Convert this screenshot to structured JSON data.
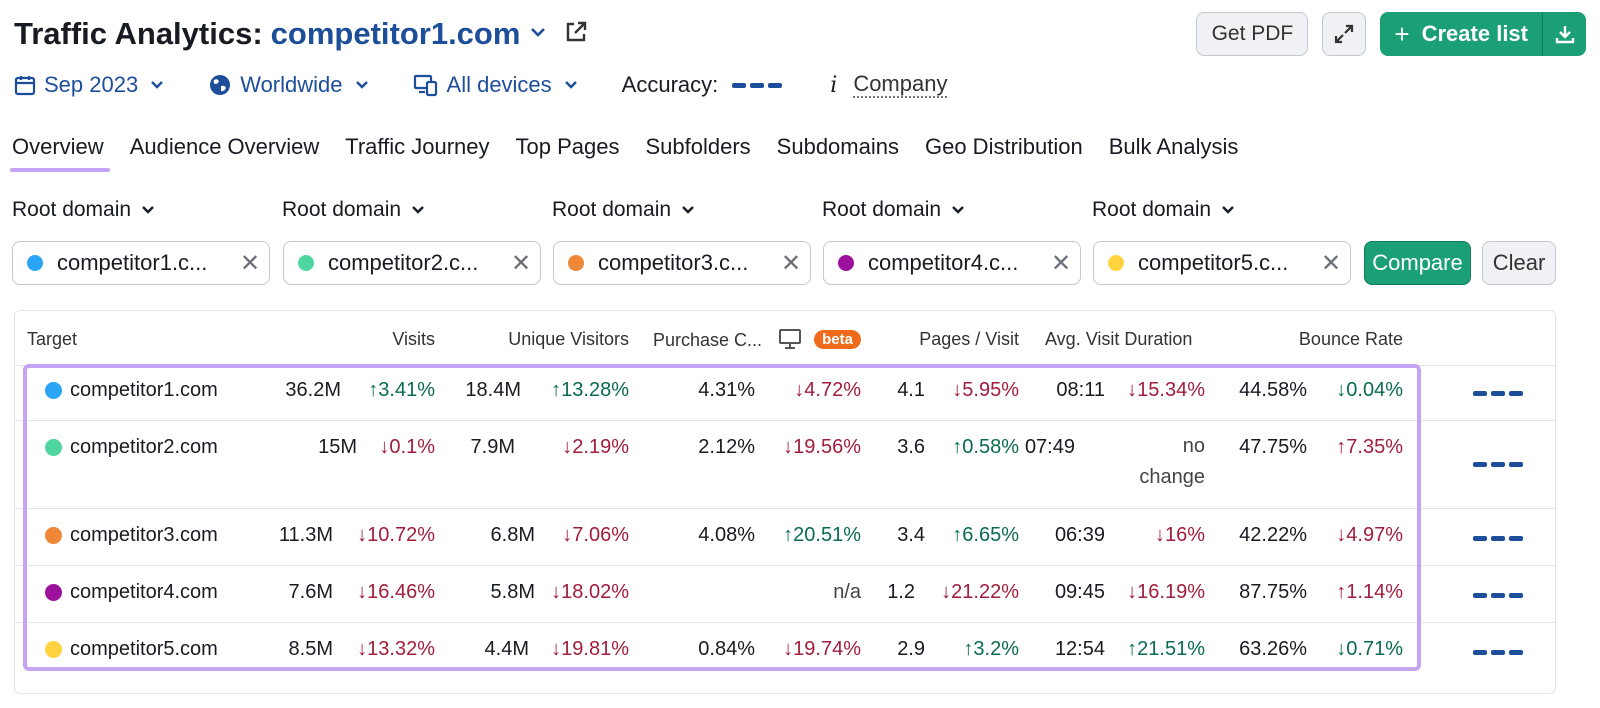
{
  "header": {
    "title": "Traffic Analytics:",
    "domain": "competitor1.com",
    "get_pdf": "Get PDF",
    "create_list": "Create list"
  },
  "filters": {
    "date": "Sep 2023",
    "region": "Worldwide",
    "devices": "All devices",
    "accuracy_label": "Accuracy:",
    "info_glyph": "i",
    "company": "Company"
  },
  "tabs": [
    "Overview",
    "Audience Overview",
    "Traffic Journey",
    "Top Pages",
    "Subfolders",
    "Subdomains",
    "Geo Distribution",
    "Bulk Analysis"
  ],
  "compare": {
    "scope_label": "Root domain",
    "inputs": [
      {
        "text": "competitor1.c...",
        "color": "#2aa4f4"
      },
      {
        "text": "competitor2.c...",
        "color": "#4fd6a0"
      },
      {
        "text": "competitor3.c...",
        "color": "#ef8737"
      },
      {
        "text": "competitor4.c...",
        "color": "#9c109c"
      },
      {
        "text": "competitor5.c...",
        "color": "#ffd23f"
      }
    ],
    "clear_glyph": "✕",
    "compare_button": "Compare",
    "clear_button": "Clear"
  },
  "table": {
    "headers": {
      "target": "Target",
      "visits": "Visits",
      "unique": "Unique Visitors",
      "purchase": "Purchase C...",
      "beta": "beta",
      "pages": "Pages / Visit",
      "duration": "Avg. Visit Duration",
      "bounce": "Bounce Rate"
    },
    "rows": [
      {
        "domain": "competitor1.com",
        "visits": "36.2M",
        "visits_delta": "↑3.41%",
        "unique": "18.4M",
        "unique_delta": "↑13.28%",
        "purchase": "4.31%",
        "purchase_delta": "↓4.72%",
        "pages": "4.1",
        "pages_delta": "↓5.95%",
        "duration": "08:11",
        "duration_delta": "↓15.34%",
        "bounce": "44.58%",
        "bounce_delta": "↓0.04%"
      },
      {
        "domain": "competitor2.com",
        "visits": "15M",
        "visits_delta": "↓0.1%",
        "unique": "7.9M",
        "unique_delta": "↓2.19%",
        "purchase": "2.12%",
        "purchase_delta": "↓19.56%",
        "pages": "3.6",
        "pages_delta": "↑0.58%",
        "duration": "07:49",
        "duration_delta_line1": "no",
        "duration_delta_line2": "change",
        "bounce": "47.75%",
        "bounce_delta": "↑7.35%"
      },
      {
        "domain": "competitor3.com",
        "visits": "11.3M",
        "visits_delta": "↓10.72%",
        "unique": "6.8M",
        "unique_delta": "↓7.06%",
        "purchase": "4.08%",
        "purchase_delta": "↑20.51%",
        "pages": "3.4",
        "pages_delta": "↑6.65%",
        "duration": "06:39",
        "duration_delta": "↓16%",
        "bounce": "42.22%",
        "bounce_delta": "↓4.97%"
      },
      {
        "domain": "competitor4.com",
        "visits": "7.6M",
        "visits_delta": "↓16.46%",
        "unique": "5.8M",
        "unique_delta": "↓18.02%",
        "purchase_na": "n/a",
        "pages": "1.2",
        "pages_delta": "↓21.22%",
        "duration": "09:45",
        "duration_delta": "↓16.19%",
        "bounce": "87.75%",
        "bounce_delta": "↑1.14%"
      },
      {
        "domain": "competitor5.com",
        "visits": "8.5M",
        "visits_delta": "↓13.32%",
        "unique": "4.4M",
        "unique_delta": "↓19.81%",
        "purchase": "0.84%",
        "purchase_delta": "↓19.74%",
        "pages": "2.9",
        "pages_delta": "↑3.2%",
        "duration": "12:54",
        "duration_delta": "↑21.51%",
        "bounce": "63.26%",
        "bounce_delta": "↓0.71%"
      }
    ]
  },
  "colors": {
    "brand_blue": "#1d4e9a",
    "green": "#1b9f77",
    "highlight": "#c6a3f3",
    "up": "#0a6b4e",
    "down": "#a21d3b"
  }
}
